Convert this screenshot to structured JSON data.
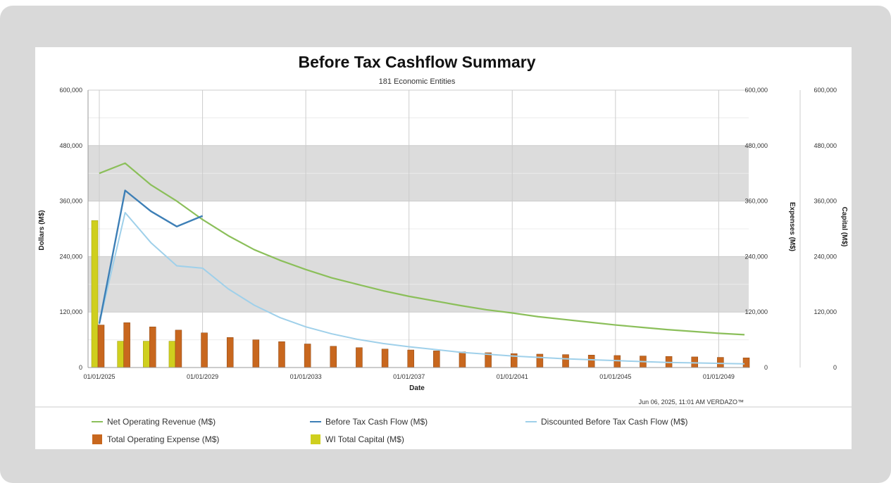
{
  "colors": {
    "net_operating_revenue": "#8bbf5a",
    "before_tax_cash_flow": "#3d7fb6",
    "discounted_before_tax_cash_flow": "#9fd0ea",
    "total_operating_expense": "#c8671e",
    "wi_total_capital": "#cfcf1e",
    "band": "#dcdcdc",
    "grid": "#cccccc"
  },
  "chart_data": {
    "type": "bar+line",
    "title": "Before Tax Cashflow Summary",
    "subtitle": "181 Economic Entities",
    "xlabel": "Date",
    "ylabel_left": "Dollars (M$)",
    "ylabel_right1": "Expenses (M$)",
    "ylabel_right2": "Capital (M$)",
    "ylim": [
      0,
      600000
    ],
    "y_ticks": [
      "0",
      "120,000",
      "240,000",
      "360,000",
      "480,000",
      "600,000"
    ],
    "y_tick_values": [
      0,
      120000,
      240000,
      360000,
      480000,
      600000
    ],
    "x_tick_labels": [
      "01/01/2025",
      "01/01/2029",
      "01/01/2033",
      "01/01/2037",
      "01/01/2041",
      "01/01/2045",
      "01/01/2049"
    ],
    "x_range": [
      2025,
      2050.6
    ],
    "grid": true,
    "legend_position": "bottom",
    "footer": "Jun 06, 2025, 11:01 AM VERDAZO™",
    "series": [
      {
        "name": "Net Operating Revenue (M$)",
        "kind": "line",
        "x": [
          2025,
          2026,
          2027,
          2028,
          2029,
          2030,
          2031,
          2032,
          2033,
          2034,
          2035,
          2036,
          2037,
          2038,
          2039,
          2040,
          2041,
          2042,
          2043,
          2044,
          2045,
          2046,
          2047,
          2048,
          2049,
          2050
        ],
        "values": [
          420000,
          442000,
          395000,
          360000,
          320000,
          285000,
          255000,
          232000,
          212000,
          194000,
          180000,
          166000,
          154000,
          144000,
          134000,
          125000,
          118000,
          110000,
          104000,
          98000,
          92000,
          87000,
          82000,
          78000,
          74000,
          71000
        ]
      },
      {
        "name": "Before Tax Cash Flow (M$)",
        "kind": "line",
        "x": [
          2025,
          2026,
          2027,
          2028,
          2029
        ],
        "values": [
          95000,
          383000,
          338000,
          305000,
          328000
        ]
      },
      {
        "name": "Discounted Before Tax Cash Flow (M$)",
        "kind": "line",
        "x": [
          2025,
          2026,
          2027,
          2028,
          2029,
          2030,
          2031,
          2032,
          2033,
          2034,
          2035,
          2036,
          2037,
          2038,
          2039,
          2040,
          2041,
          2042,
          2043,
          2044,
          2045,
          2046,
          2047,
          2048,
          2049,
          2050
        ],
        "values": [
          95000,
          335000,
          270000,
          220000,
          215000,
          170000,
          135000,
          108000,
          88000,
          73000,
          61000,
          52000,
          45000,
          39000,
          33000,
          29000,
          25000,
          22000,
          19000,
          17000,
          15000,
          13000,
          11000,
          10000,
          9000,
          8000
        ]
      },
      {
        "name": "Total Operating Expense (M$)",
        "kind": "bar",
        "x": [
          2025,
          2026,
          2027,
          2028,
          2029,
          2030,
          2031,
          2032,
          2033,
          2034,
          2035,
          2036,
          2037,
          2038,
          2039,
          2040,
          2041,
          2042,
          2043,
          2044,
          2045,
          2046,
          2047,
          2048,
          2049,
          2050
        ],
        "values": [
          92000,
          97000,
          88000,
          81000,
          75000,
          65000,
          60000,
          56000,
          51000,
          46000,
          43000,
          40000,
          38000,
          36000,
          34000,
          32000,
          30000,
          29000,
          28000,
          27000,
          26000,
          25000,
          24000,
          23000,
          22000,
          21000
        ]
      },
      {
        "name": "WI Total Capital (M$)",
        "kind": "bar",
        "x": [
          2025,
          2026,
          2027,
          2028
        ],
        "values": [
          318000,
          57000,
          57000,
          57000
        ]
      }
    ]
  }
}
